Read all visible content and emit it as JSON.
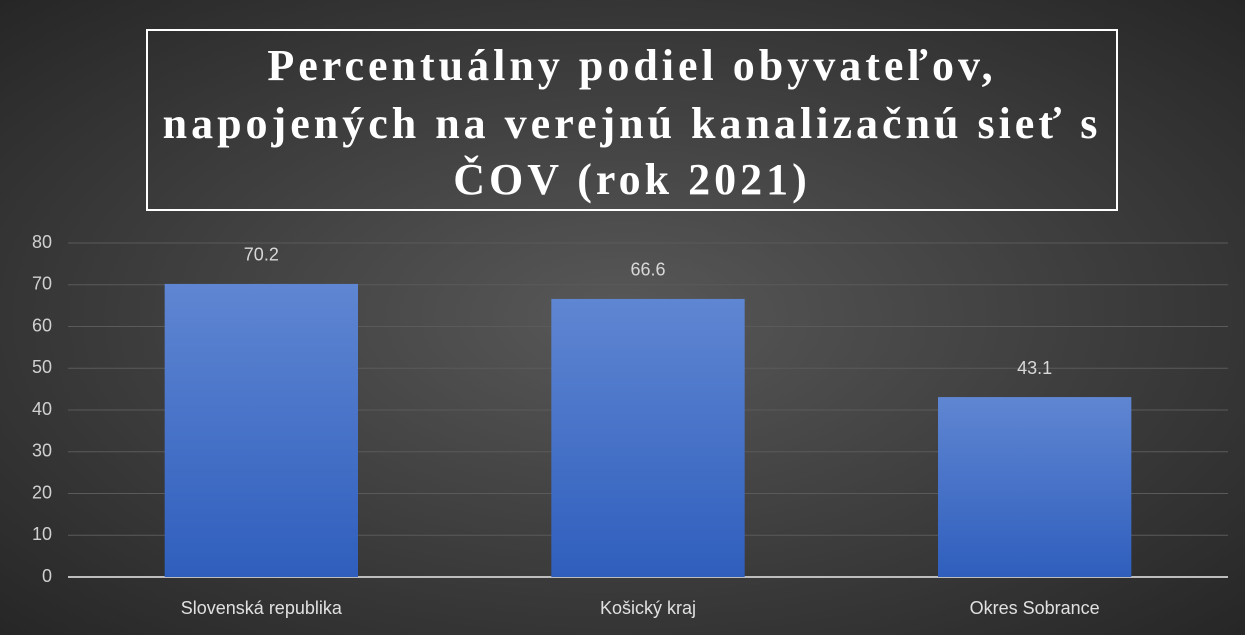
{
  "chart_data": {
    "type": "bar",
    "title": [
      "Percentuálny podiel obyvateľov,",
      "napojených na verejnú kanalizačnú sieť s",
      "ČOV (rok 2021)"
    ],
    "categories": [
      "Slovenská republika",
      "Košický kraj",
      "Okres Sobrance"
    ],
    "values": [
      70.2,
      66.6,
      43.1
    ],
    "color": "#4472c4",
    "ylim": [
      0,
      80
    ],
    "yticks": [
      0,
      10,
      20,
      30,
      40,
      50,
      60,
      70,
      80
    ],
    "grid": true
  }
}
